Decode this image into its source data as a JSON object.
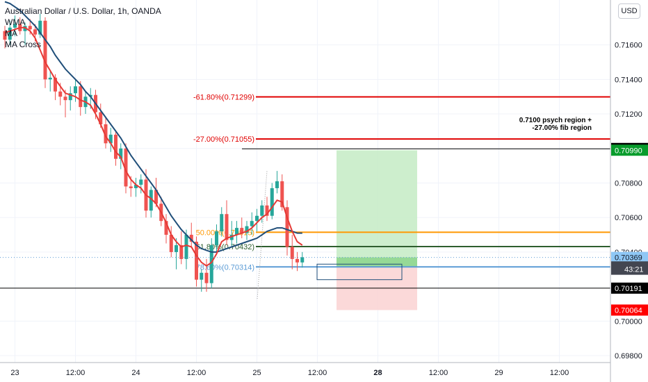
{
  "header": {
    "title": "Australian Dollar / U.S. Dollar, 1h, OANDA",
    "indicators": [
      "WMA",
      "MA",
      "MA Cross"
    ],
    "currency_button": "USD"
  },
  "colors": {
    "up": "#26a69a",
    "down": "#ef5350",
    "ma_fast": "#e53935",
    "ma_slow": "#1f4e79",
    "fib_red": "#e00000",
    "fib_orange": "#ff9800",
    "fib_green": "#2e5e2e",
    "fib_blue": "#5b9bd5",
    "profit_zone": "#c8ecc8",
    "loss_zone": "#fbd5d5",
    "axis_text": "#131722",
    "grid": "#f0f3fa"
  },
  "chart_data": {
    "type": "candlestick",
    "symbol": "AUDUSD",
    "timeframe": "1h",
    "ylim": [
      0.6976,
      0.7186
    ],
    "y_ticks": [
      0.698,
      0.7,
      0.702,
      0.704,
      0.706,
      0.708,
      0.71,
      0.712,
      0.714,
      0.716
    ],
    "y_tick_labels": [
      "0.69800",
      "0.70000",
      "",
      "0.70400",
      "0.70600",
      "0.70800",
      "0.71000",
      "0.71200",
      "0.71400",
      "0.71600"
    ],
    "x_ticks": [
      {
        "label": "23",
        "bar": 2,
        "bold": false
      },
      {
        "label": "12:00",
        "bar": 14,
        "bold": false
      },
      {
        "label": "24",
        "bar": 26,
        "bold": false
      },
      {
        "label": "12:00",
        "bar": 38,
        "bold": false
      },
      {
        "label": "25",
        "bar": 50,
        "bold": false
      },
      {
        "label": "12:00",
        "bar": 62,
        "bold": false
      },
      {
        "label": "28",
        "bar": 74,
        "bold": true
      },
      {
        "label": "12:00",
        "bar": 86,
        "bold": false
      },
      {
        "label": "29",
        "bar": 98,
        "bold": false
      },
      {
        "label": "12:00",
        "bar": 110,
        "bold": false
      }
    ],
    "candles": [
      [
        0.7168,
        0.7171,
        0.7158,
        0.7163
      ],
      [
        0.7163,
        0.7174,
        0.716,
        0.717
      ],
      [
        0.717,
        0.7177,
        0.7165,
        0.7172
      ],
      [
        0.7172,
        0.7176,
        0.7166,
        0.7168
      ],
      [
        0.7168,
        0.7173,
        0.716,
        0.7171
      ],
      [
        0.7171,
        0.7175,
        0.7166,
        0.7169
      ],
      [
        0.7169,
        0.7172,
        0.7162,
        0.7166
      ],
      [
        0.7166,
        0.7178,
        0.7164,
        0.7174
      ],
      [
        0.7174,
        0.7176,
        0.7135,
        0.714
      ],
      [
        0.714,
        0.7145,
        0.7133,
        0.7141
      ],
      [
        0.7141,
        0.7143,
        0.7128,
        0.7133
      ],
      [
        0.7133,
        0.7138,
        0.7125,
        0.713
      ],
      [
        0.713,
        0.7134,
        0.7118,
        0.7128
      ],
      [
        0.7128,
        0.7136,
        0.7122,
        0.7132
      ],
      [
        0.7132,
        0.714,
        0.7127,
        0.7136
      ],
      [
        0.7136,
        0.7139,
        0.7119,
        0.7124
      ],
      [
        0.7124,
        0.7133,
        0.712,
        0.713
      ],
      [
        0.713,
        0.7135,
        0.7123,
        0.7131
      ],
      [
        0.7131,
        0.7134,
        0.7117,
        0.7121
      ],
      [
        0.7121,
        0.7126,
        0.7112,
        0.7114
      ],
      [
        0.7114,
        0.7118,
        0.71,
        0.7103
      ],
      [
        0.7103,
        0.7112,
        0.7098,
        0.7108
      ],
      [
        0.7108,
        0.711,
        0.709,
        0.7094
      ],
      [
        0.7094,
        0.7103,
        0.7088,
        0.71
      ],
      [
        0.71,
        0.7103,
        0.7074,
        0.7078
      ],
      [
        0.7078,
        0.7084,
        0.7072,
        0.7077
      ],
      [
        0.7077,
        0.7083,
        0.7072,
        0.7079
      ],
      [
        0.7079,
        0.7085,
        0.7074,
        0.7082
      ],
      [
        0.7082,
        0.7088,
        0.706,
        0.7064
      ],
      [
        0.7064,
        0.7078,
        0.706,
        0.7076
      ],
      [
        0.7076,
        0.7083,
        0.7066,
        0.7068
      ],
      [
        0.7068,
        0.7072,
        0.7055,
        0.7058
      ],
      [
        0.7058,
        0.7062,
        0.7045,
        0.705
      ],
      [
        0.705,
        0.7055,
        0.7037,
        0.704
      ],
      [
        0.704,
        0.7048,
        0.703,
        0.7044
      ],
      [
        0.7044,
        0.7052,
        0.7033,
        0.7036
      ],
      [
        0.7036,
        0.7053,
        0.703,
        0.705
      ],
      [
        0.705,
        0.7057,
        0.7043,
        0.7046
      ],
      [
        0.7046,
        0.7049,
        0.702,
        0.7024
      ],
      [
        0.7024,
        0.703,
        0.7017,
        0.7028
      ],
      [
        0.7028,
        0.7036,
        0.7017,
        0.7022
      ],
      [
        0.7022,
        0.7048,
        0.7019,
        0.7044
      ],
      [
        0.7044,
        0.7056,
        0.7039,
        0.7052
      ],
      [
        0.7052,
        0.7066,
        0.7049,
        0.7062
      ],
      [
        0.7062,
        0.707,
        0.7044,
        0.7047
      ],
      [
        0.7047,
        0.7058,
        0.7043,
        0.705
      ],
      [
        0.705,
        0.7058,
        0.7045,
        0.7054
      ],
      [
        0.7054,
        0.706,
        0.7048,
        0.7051
      ],
      [
        0.7051,
        0.7058,
        0.7047,
        0.7055
      ],
      [
        0.7055,
        0.7063,
        0.705,
        0.7058
      ],
      [
        0.7058,
        0.7065,
        0.7052,
        0.7061
      ],
      [
        0.7061,
        0.707,
        0.7057,
        0.7067
      ],
      [
        0.7067,
        0.7072,
        0.7058,
        0.7061
      ],
      [
        0.7061,
        0.708,
        0.7059,
        0.7077
      ],
      [
        0.7077,
        0.7087,
        0.7074,
        0.7081
      ],
      [
        0.7081,
        0.7085,
        0.7064,
        0.7066
      ],
      [
        0.7066,
        0.707,
        0.7038,
        0.7043
      ],
      [
        0.7043,
        0.705,
        0.703,
        0.7036
      ],
      [
        0.7036,
        0.704,
        0.7029,
        0.7034
      ],
      [
        0.7034,
        0.704,
        0.7031,
        0.7037
      ]
    ],
    "bar_times": [
      "23 00:00",
      "23 01:00",
      "23 02:00",
      "23 03:00",
      "23 04:00",
      "23 05:00",
      "23 06:00",
      "23 07:00",
      "23 08:00",
      "23 09:00",
      "23 10:00",
      "23 11:00",
      "23 12:00",
      "23 13:00",
      "23 14:00",
      "23 15:00",
      "23 16:00",
      "23 17:00",
      "23 18:00",
      "23 19:00",
      "23 20:00",
      "23 21:00",
      "23 22:00",
      "23 23:00",
      "24 00:00",
      "24 01:00",
      "24 02:00",
      "24 03:00",
      "24 04:00",
      "24 05:00",
      "24 06:00",
      "24 07:00",
      "24 08:00",
      "24 09:00",
      "24 10:00",
      "24 11:00",
      "24 12:00",
      "24 13:00",
      "24 14:00",
      "24 15:00",
      "24 16:00",
      "24 17:00",
      "24 18:00",
      "24 19:00",
      "24 20:00",
      "24 21:00",
      "25 00:00",
      "25 01:00",
      "25 02:00",
      "25 03:00",
      "25 04:00",
      "25 05:00",
      "25 06:00",
      "25 07:00",
      "25 08:00",
      "25 09:00",
      "25 10:00",
      "25 11:00",
      "25 12:00",
      "25 13:00"
    ],
    "ma_fast": [
      0.7167,
      0.7168,
      0.7169,
      0.717,
      0.717,
      0.7168,
      0.7164,
      0.7157,
      0.715,
      0.7145,
      0.714,
      0.7136,
      0.7132,
      0.7131,
      0.713,
      0.7128,
      0.7127,
      0.7125,
      0.712,
      0.7114,
      0.7107,
      0.7103,
      0.7098,
      0.7095,
      0.7087,
      0.7082,
      0.7079,
      0.7077,
      0.7073,
      0.7071,
      0.7068,
      0.7063,
      0.7057,
      0.705,
      0.7046,
      0.7043,
      0.7044,
      0.7043,
      0.7038,
      0.7034,
      0.7032,
      0.7034,
      0.7039,
      0.7046,
      0.7048,
      0.7049,
      0.705,
      0.7051,
      0.7052,
      0.7054,
      0.7057,
      0.706,
      0.7062,
      0.7066,
      0.707,
      0.7069,
      0.706,
      0.7052,
      0.7046,
      0.7044
    ],
    "ma_slow": [
      0.7185,
      0.7184,
      0.7182,
      0.718,
      0.7177,
      0.7174,
      0.7171,
      0.7167,
      0.7163,
      0.7159,
      0.7154,
      0.715,
      0.7146,
      0.7143,
      0.714,
      0.7137,
      0.7133,
      0.713,
      0.7126,
      0.7122,
      0.7118,
      0.7114,
      0.711,
      0.7106,
      0.7101,
      0.7096,
      0.7092,
      0.7088,
      0.7084,
      0.708,
      0.7076,
      0.7071,
      0.7066,
      0.7061,
      0.7057,
      0.7053,
      0.705,
      0.7047,
      0.7044,
      0.7042,
      0.7041,
      0.704,
      0.704,
      0.7041,
      0.7042,
      0.7043,
      0.7044,
      0.7045,
      0.7046,
      0.7047,
      0.7048,
      0.705,
      0.7052,
      0.7053,
      0.7054,
      0.7054,
      0.7053,
      0.7052,
      0.7051,
      0.7051
    ],
    "fib_levels": [
      {
        "label": "-61.80%(0.71299)",
        "price": 0.71299,
        "color": "#e00000"
      },
      {
        "label": "-27.00%(0.71055)",
        "price": 0.71055,
        "color": "#e00000"
      },
      {
        "label": "50.00%(0.70515)",
        "price": 0.70515,
        "color": "#ff9800"
      },
      {
        "label": "61.80%(0.70432)",
        "price": 0.70432,
        "color": "#2e5e2e"
      },
      {
        "label": "78.60%(0.70314)",
        "price": 0.70314,
        "color": "#5b9bd5"
      }
    ],
    "horizontal_lines": [
      {
        "price": 0.70998,
        "color": "#000000"
      },
      {
        "price": 0.70191,
        "color": "#000000"
      }
    ],
    "annotation": [
      "0.7100 psych region +",
      "-27.00% fib region"
    ],
    "position": {
      "entry": 0.70314,
      "target": 0.7099,
      "stop": 0.70064
    },
    "current_price": 0.70369,
    "countdown": "43:21",
    "price_labels": [
      {
        "text": "0.71000",
        "price": 0.71,
        "bg": "#000000",
        "fg": "#ffffff"
      },
      {
        "text": "0.70990",
        "price": 0.7099,
        "bg": "#089c2c",
        "fg": "#ffffff"
      },
      {
        "text": "0.70369",
        "price": 0.70369,
        "bg": "#8ec7f5",
        "fg": "#131722"
      },
      {
        "text": "0.70314",
        "price": 0.70314,
        "bg": "#434651",
        "fg": "#ffffff"
      },
      {
        "text": "0.70191",
        "price": 0.70191,
        "bg": "#000000",
        "fg": "#ffffff"
      },
      {
        "text": "0.70064",
        "price": 0.70064,
        "bg": "#ff0000",
        "fg": "#ffffff"
      }
    ]
  }
}
